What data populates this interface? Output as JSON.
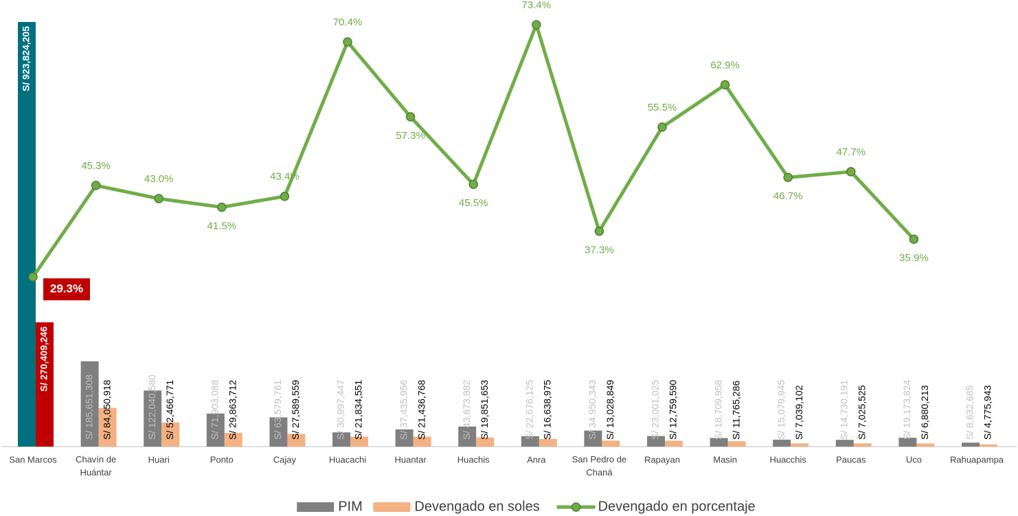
{
  "chart_data": {
    "type": "bar_line",
    "categories": [
      "San Marcos",
      "Chavín de Huántar",
      "Huari",
      "Ponto",
      "Cajay",
      "Huacachi",
      "Huantar",
      "Huachis",
      "Anra",
      "San Pedro de Chaná",
      "Rapayan",
      "Masin",
      "Huacchis",
      "Paucas",
      "Uco",
      "Rahuapampa"
    ],
    "series": [
      {
        "name": "PIM",
        "type": "bar",
        "color": "#7f7f7f",
        "label_color": "#bfbfbf",
        "colors": [
          "#00707f",
          "#7f7f7f",
          "#7f7f7f",
          "#7f7f7f",
          "#7f7f7f",
          "#7f7f7f",
          "#7f7f7f",
          "#7f7f7f",
          "#7f7f7f",
          "#7f7f7f",
          "#7f7f7f",
          "#7f7f7f",
          "#7f7f7f",
          "#7f7f7f",
          "#7f7f7f",
          "#7f7f7f"
        ],
        "values": [
          923824205,
          185651308,
          122040580,
          71903088,
          63579761,
          30997447,
          37435956,
          43673882,
          22676125,
          34950343,
          23001025,
          18709958,
          15079945,
          14730191,
          19173824,
          8632685
        ],
        "value_labels": [
          "S/ 923,824,205",
          "S/ 185,651,308",
          "S/ 122,040,580",
          "S/ 71,903,088",
          "S/ 63,579,761",
          "S/ 30,997,447",
          "S/ 37,435,956",
          "S/ 43,673,882",
          "S/ 22,676,125",
          "S/ 34,950,343",
          "S/ 23,001,025",
          "S/ 18,709,958",
          "S/ 15,079,945",
          "S/ 14,730,191",
          "S/ 19,173,824",
          "S/ 8,632,685"
        ]
      },
      {
        "name": "Devengado en soles",
        "type": "bar",
        "color": "#f4b183",
        "label_color": "#000000",
        "colors": [
          "#c00000",
          "#f4b183",
          "#f4b183",
          "#f4b183",
          "#f4b183",
          "#f4b183",
          "#f4b183",
          "#f4b183",
          "#f4b183",
          "#f4b183",
          "#f4b183",
          "#f4b183",
          "#f4b183",
          "#f4b183",
          "#f4b183",
          "#f4b183"
        ],
        "values": [
          270409246,
          84050918,
          52466771,
          29863712,
          27589559,
          21834551,
          21436768,
          19851653,
          16638975,
          13028849,
          12759590,
          11765286,
          7039102,
          7025525,
          6880213,
          4775943
        ],
        "value_labels": [
          "S/ 270,409,246",
          "S/ 84,050,918",
          "S/ 52,466,771",
          "S/ 29,863,712",
          "S/ 27,589,559",
          "S/ 21,834,551",
          "S/ 21,436,768",
          "S/ 19,851,653",
          "S/ 16,638,975",
          "S/ 13,028,849",
          "S/ 12,759,590",
          "S/ 11,765,286",
          "S/ 7,039,102",
          "S/ 7,025,525",
          "S/ 6,880,213",
          "S/ 4,775,943"
        ]
      },
      {
        "name": "Devengado en porcentaje",
        "type": "line",
        "color": "#70ad47",
        "values": [
          29.3,
          45.3,
          43.0,
          41.5,
          43.4,
          70.4,
          57.3,
          45.5,
          73.4,
          37.3,
          55.5,
          62.9,
          46.7,
          47.7,
          35.9,
          null
        ],
        "value_labels": [
          "29.3%",
          "45.3%",
          "43.0%",
          "41.5%",
          "43.4%",
          "70.4%",
          "57.3%",
          "45.5%",
          "73.4%",
          "37.3%",
          "55.5%",
          "62.9%",
          "46.7%",
          "47.7%",
          "35.9%",
          null
        ]
      }
    ],
    "legend": "bottom"
  }
}
